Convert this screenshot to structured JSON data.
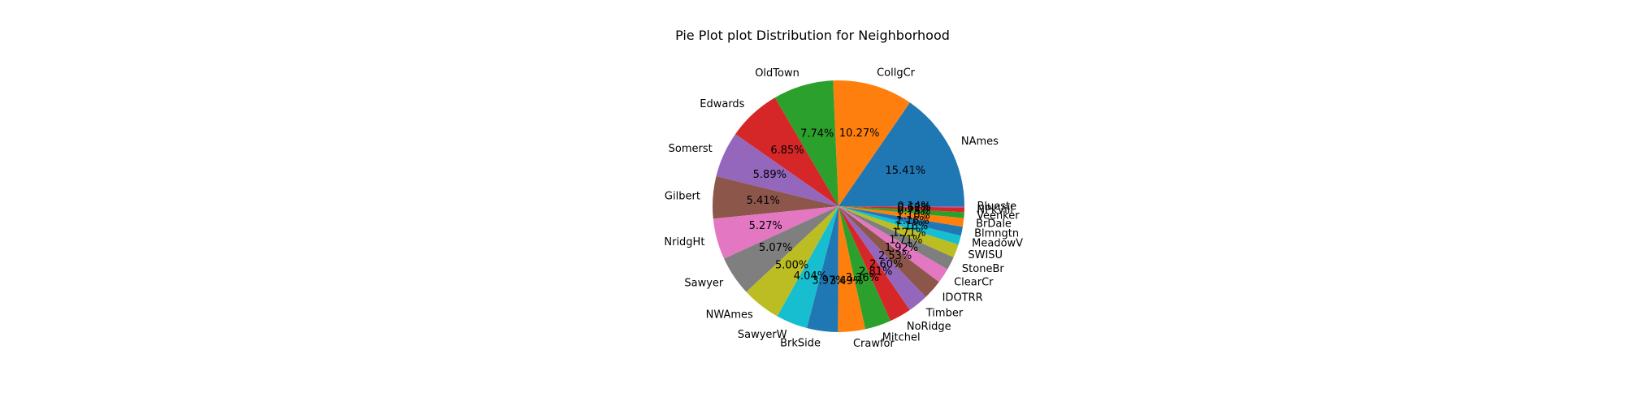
{
  "chart_data": {
    "type": "pie",
    "title": "Pie Plot plot Distribution for Neighborhood",
    "start_angle_deg": 0,
    "direction": "counterclockwise",
    "autopct_format": "%.2f%%",
    "slices": [
      {
        "label": "NAmes",
        "value": 225,
        "pct": "15.41%",
        "color": "#1f77b4"
      },
      {
        "label": "CollgCr",
        "value": 150,
        "pct": "10.27%",
        "color": "#ff7f0e"
      },
      {
        "label": "OldTown",
        "value": 113,
        "pct": "7.74%",
        "color": "#2ca02c"
      },
      {
        "label": "Edwards",
        "value": 100,
        "pct": "6.85%",
        "color": "#d62728"
      },
      {
        "label": "Somerst",
        "value": 86,
        "pct": "5.89%",
        "color": "#9467bd"
      },
      {
        "label": "Gilbert",
        "value": 79,
        "pct": "5.41%",
        "color": "#8c564b"
      },
      {
        "label": "NridgHt",
        "value": 77,
        "pct": "5.27%",
        "color": "#e377c2"
      },
      {
        "label": "Sawyer",
        "value": 74,
        "pct": "5.07%",
        "color": "#7f7f7f"
      },
      {
        "label": "NWAmes",
        "value": 73,
        "pct": "5.00%",
        "color": "#bcbd22"
      },
      {
        "label": "SawyerW",
        "value": 59,
        "pct": "4.04%",
        "color": "#17becf"
      },
      {
        "label": "BrkSide",
        "value": 58,
        "pct": "3.97%",
        "color": "#1f77b4"
      },
      {
        "label": "Crawfor",
        "value": 51,
        "pct": "3.49%",
        "color": "#ff7f0e"
      },
      {
        "label": "Mitchel",
        "value": 49,
        "pct": "3.36%",
        "color": "#2ca02c"
      },
      {
        "label": "NoRidge",
        "value": 41,
        "pct": "2.81%",
        "color": "#d62728"
      },
      {
        "label": "Timber",
        "value": 38,
        "pct": "2.60%",
        "color": "#9467bd"
      },
      {
        "label": "IDOTRR",
        "value": 37,
        "pct": "2.53%",
        "color": "#8c564b"
      },
      {
        "label": "ClearCr",
        "value": 28,
        "pct": "1.92%",
        "color": "#e377c2"
      },
      {
        "label": "StoneBr",
        "value": 25,
        "pct": "1.71%",
        "color": "#7f7f7f"
      },
      {
        "label": "SWISU",
        "value": 25,
        "pct": "1.71%",
        "color": "#bcbd22"
      },
      {
        "label": "MeadowV",
        "value": 17,
        "pct": "1.16%",
        "color": "#17becf"
      },
      {
        "label": "Blmngtn",
        "value": 17,
        "pct": "1.16%",
        "color": "#1f77b4"
      },
      {
        "label": "BrDale",
        "value": 16,
        "pct": "1.10%",
        "color": "#ff7f0e"
      },
      {
        "label": "Veenker",
        "value": 11,
        "pct": "0.75%",
        "color": "#2ca02c"
      },
      {
        "label": "NPkVill",
        "value": 9,
        "pct": "0.62%",
        "color": "#d62728"
      },
      {
        "label": "Blueste",
        "value": 2,
        "pct": "0.14%",
        "color": "#9467bd"
      }
    ]
  }
}
